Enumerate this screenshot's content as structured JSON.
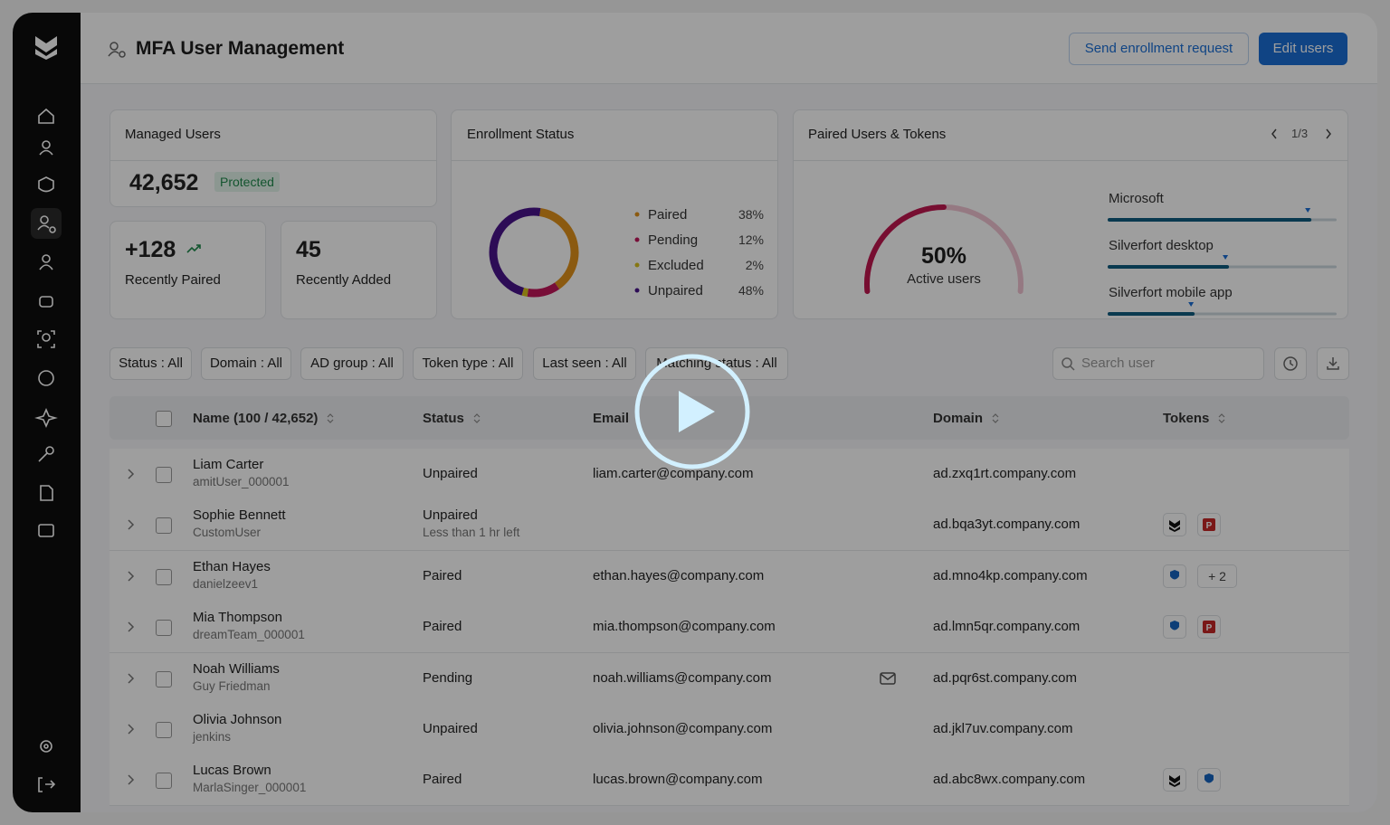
{
  "header": {
    "title": "MFA User Management",
    "send_button": "Send enrollment request",
    "edit_button": "Edit users"
  },
  "managed": {
    "title": "Managed Users",
    "count": "42,652",
    "badge": "Protected"
  },
  "stats": [
    {
      "value": "+128",
      "label": "Recently Paired"
    },
    {
      "value": "45",
      "label": "Recently Added"
    }
  ],
  "enrollment": {
    "title": "Enrollment Status",
    "categories": [
      "Paired",
      "Pending",
      "Excluded",
      "Unpaired"
    ],
    "values": [
      38,
      12,
      2,
      48
    ],
    "value_labels": [
      "38%",
      "12%",
      "2%",
      "48%"
    ],
    "colors": [
      "#e0911b",
      "#c2185b",
      "#d8c11e",
      "#4a148c"
    ]
  },
  "paired": {
    "title": "Paired Users & Tokens",
    "pager": "1/3",
    "gauge": {
      "value": 50,
      "value_label": "50%",
      "label": "Active users",
      "color": "#c0174f"
    },
    "bars": [
      {
        "name": "Microsoft",
        "value": 89
      },
      {
        "name": "Silverfort desktop",
        "value": 53
      },
      {
        "name": "Silverfort mobile app",
        "value": 38
      }
    ]
  },
  "filters": [
    "Status : All",
    "Domain : All",
    "AD group : All",
    "Token type : All",
    "Last seen : All",
    "Matching status : All"
  ],
  "search_placeholder": "Search user",
  "table": {
    "columns": [
      "Name (100 / 42,652)",
      "Status",
      "Email",
      "Domain",
      "Tokens"
    ],
    "rows": [
      {
        "name": "Liam Carter",
        "sub": "amitUser_000001",
        "status": "Unpaired",
        "email": "liam.carter@company.com",
        "domain": "ad.zxq1rt.company.com"
      },
      {
        "name": "Sophie Bennett",
        "sub": "CustomUser",
        "status": "Unpaired",
        "status_sub": "Less than 1 hr left",
        "domain": "ad.bqa3yt.company.com"
      },
      {
        "name": "Ethan Hayes",
        "sub": "danielzeev1",
        "status": "Paired",
        "email": "ethan.hayes@company.com",
        "domain": "ad.mno4kp.company.com",
        "more_tokens": "+ 2"
      },
      {
        "name": "Mia Thompson",
        "sub": "dreamTeam_000001",
        "status": "Paired",
        "email": "mia.thompson@company.com",
        "domain": "ad.lmn5qr.company.com"
      },
      {
        "name": "Noah Williams",
        "sub": "Guy Friedman",
        "status": "Pending",
        "email": "noah.williams@company.com",
        "domain": "ad.pqr6st.company.com"
      },
      {
        "name": "Olivia Johnson",
        "sub": "jenkins",
        "status": "Unpaired",
        "email": "olivia.johnson@company.com",
        "domain": "ad.jkl7uv.company.com"
      },
      {
        "name": "Lucas Brown",
        "sub": "MarlaSinger_000001",
        "status": "Paired",
        "email": "lucas.brown@company.com",
        "domain": "ad.abc8wx.company.com"
      }
    ]
  }
}
